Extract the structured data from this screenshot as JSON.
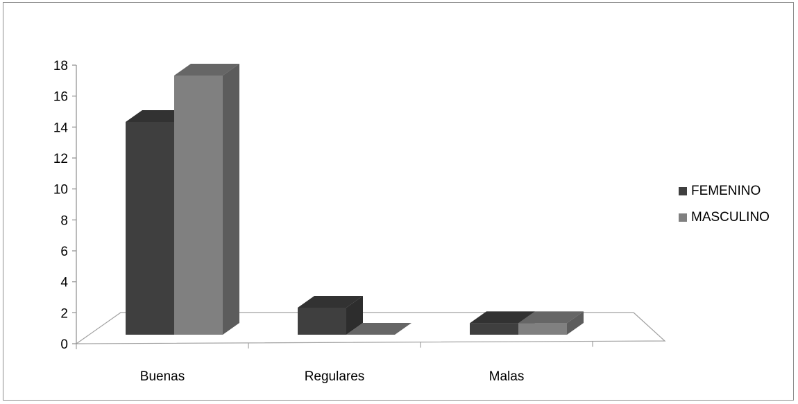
{
  "chart_data": {
    "type": "bar",
    "title": "",
    "xlabel": "",
    "ylabel": "",
    "categories": [
      "Buenas",
      "Regulares",
      "Malas"
    ],
    "series": [
      {
        "name": "FEMENINO",
        "values": [
          15,
          3,
          2
        ],
        "color": "#3f3f3f"
      },
      {
        "name": "MASCULINO",
        "values": [
          18,
          0,
          2
        ],
        "color": "#808080"
      }
    ],
    "ylim": [
      0,
      18
    ],
    "yticks": [
      "0",
      "2",
      "4",
      "6",
      "8",
      "10",
      "12",
      "14",
      "16",
      "18"
    ],
    "legend_position": "right",
    "grid": false,
    "style": "3d-clustered-column"
  }
}
